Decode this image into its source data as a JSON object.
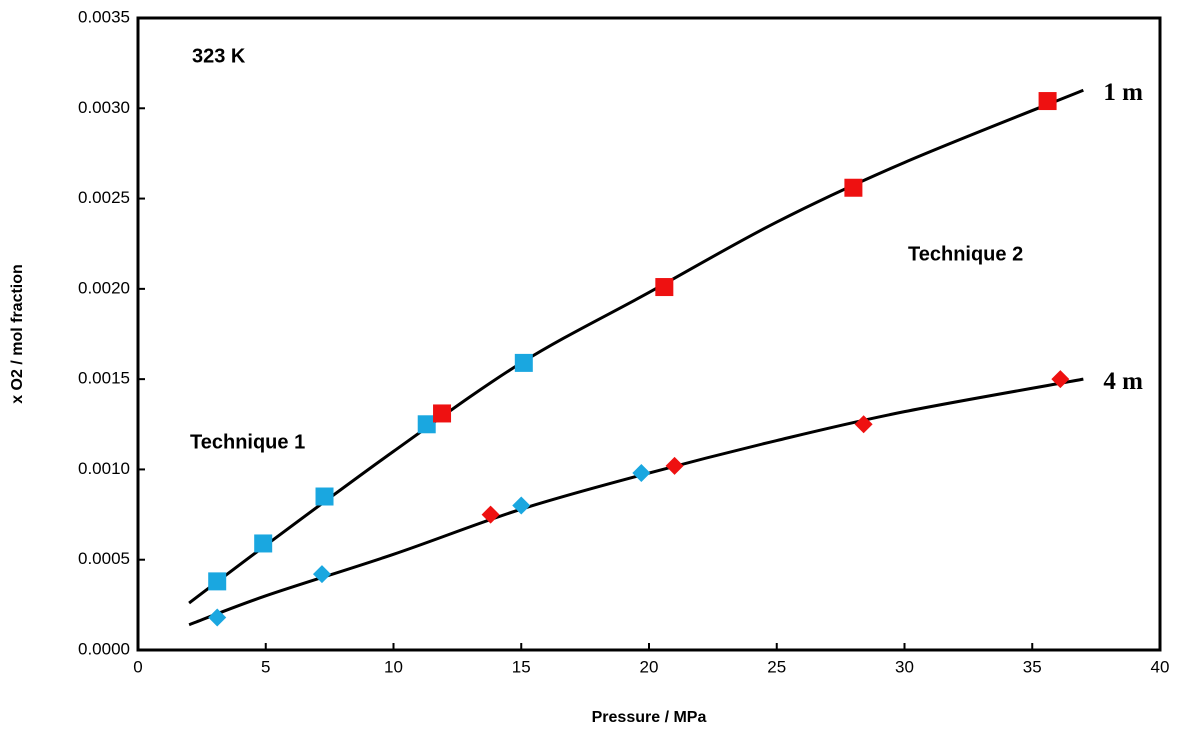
{
  "chart_data": {
    "type": "scatter",
    "x_label": "Pressure / MPa",
    "y_label": "x O2 / mol fraction",
    "xlim": [
      0,
      40
    ],
    "ylim": [
      0,
      0.0035
    ],
    "xticks": [
      0,
      5,
      10,
      15,
      20,
      25,
      30,
      35,
      40
    ],
    "yticks": [
      {
        "value": 0,
        "label": "0.0000"
      },
      {
        "value": 0.0005,
        "label": "0.0005"
      },
      {
        "value": 0.001,
        "label": "0.0010"
      },
      {
        "value": 0.0015,
        "label": "0.0015"
      },
      {
        "value": 0.002,
        "label": "0.0020"
      },
      {
        "value": 0.0025,
        "label": "0.0025"
      },
      {
        "value": 0.003,
        "label": "0.0030"
      },
      {
        "value": 0.0035,
        "label": "0.0035"
      }
    ],
    "annotations": [
      {
        "text": "323 K",
        "color": "#000000"
      },
      {
        "text": "Technique 1",
        "color": "#1aa7e0"
      },
      {
        "text": "Technique 2",
        "color": "#ee1111"
      }
    ],
    "curves": [
      {
        "label": "1 m",
        "color": "#000000",
        "x": [
          2,
          5,
          10,
          15,
          20,
          25,
          30,
          37
        ],
        "values": [
          0.00026,
          0.00058,
          0.0011,
          0.00159,
          0.00198,
          0.00237,
          0.0027,
          0.0031
        ]
      },
      {
        "label": "4 m",
        "color": "#000000",
        "x": [
          2,
          5,
          10,
          15,
          20,
          25,
          30,
          37
        ],
        "values": [
          0.00014,
          0.0003,
          0.00053,
          0.00078,
          0.00098,
          0.00116,
          0.00132,
          0.0015
        ]
      }
    ],
    "series": [
      {
        "color": "#1aa7e0",
        "marker": "square",
        "x": [
          3.1,
          4.9,
          7.3,
          11.3,
          15.1
        ],
        "values": [
          0.00038,
          0.00059,
          0.00085,
          0.00125,
          0.00159
        ]
      },
      {
        "color": "#ee1111",
        "marker": "square",
        "x": [
          11.9,
          20.6,
          28.0,
          35.6
        ],
        "values": [
          0.00131,
          0.00201,
          0.00256,
          0.00304
        ]
      },
      {
        "color": "#1aa7e0",
        "marker": "diamond",
        "x": [
          3.1,
          7.2,
          15.0,
          19.7
        ],
        "values": [
          0.00018,
          0.00042,
          0.0008,
          0.00098
        ]
      },
      {
        "color": "#ee1111",
        "marker": "diamond",
        "x": [
          13.8,
          21.0,
          28.4,
          36.1
        ],
        "values": [
          0.00075,
          0.00102,
          0.00125,
          0.0015
        ]
      }
    ]
  }
}
